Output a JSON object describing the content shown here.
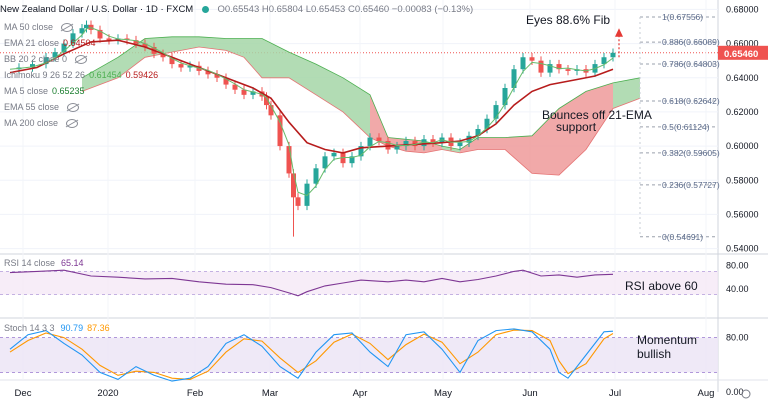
{
  "header": {
    "symbol_title": "New Zealand Dollar / U.S. Dollar · 1D · FXCM",
    "ohlc": "O0.65543  H0.65804  L0.65453  C0.65460  −0.00083 (−0.13%)"
  },
  "legend": [
    {
      "name": "MA 50 close",
      "values": [],
      "hidden": true
    },
    {
      "name": "EMA 21 close",
      "values": [
        "0.64504"
      ],
      "hidden": false,
      "color": "#b71c1c"
    },
    {
      "name": "BB 20 2 close 0",
      "values": [],
      "hidden": true
    },
    {
      "name": "Ichimoku 9 26 52 26",
      "values": [
        "0.61454",
        "0.59426"
      ],
      "hidden": false,
      "colors": [
        "#4caf50",
        "#b71c1c"
      ]
    },
    {
      "name": "MA 5 close",
      "values": [
        "0.65235"
      ],
      "hidden": false,
      "color": "#1b7e2f"
    },
    {
      "name": "EMA 55 close",
      "values": [],
      "hidden": true
    },
    {
      "name": "MA 200 close",
      "values": [],
      "hidden": true
    }
  ],
  "price_axis": {
    "ticks": [
      "0.68000",
      "0.66000",
      "0.64000",
      "0.62000",
      "0.60000",
      "0.58000",
      "0.56000",
      "0.54000"
    ]
  },
  "last_price": {
    "label": "0.65460",
    "color": "#ef5350"
  },
  "time_axis": {
    "ticks": [
      "Dec",
      "2020",
      "Feb",
      "Mar",
      "Apr",
      "May",
      "Jun",
      "Jul",
      "Aug"
    ]
  },
  "fib_levels": [
    {
      "label": "1(0.67556)",
      "price": 0.67556
    },
    {
      "label": "0.886(0.66089)",
      "price": 0.66089
    },
    {
      "label": "0.786(0.64803)",
      "price": 0.64803
    },
    {
      "label": "0.618(0.62642)",
      "price": 0.62642
    },
    {
      "label": "0.5(0.61124)",
      "price": 0.61124
    },
    {
      "label": "0.382(0.59605)",
      "price": 0.59605
    },
    {
      "label": "0.236(0.57727)",
      "price": 0.57727
    },
    {
      "label": "0(0.54691)",
      "price": 0.54691
    }
  ],
  "annotations": {
    "fib_target": "Eyes 88.6% Fib",
    "ema_bounce": "Bounces off 21-EMA support",
    "rsi_note": "RSI above 60",
    "stoch_note": "Momentum bullish"
  },
  "rsi": {
    "legend": "RSI 14 close",
    "value": "65.14",
    "axis": [
      "80.00",
      "40.00"
    ],
    "color": "#7e3794"
  },
  "stoch": {
    "legend": "Stoch 14 3 3",
    "k": "90.79",
    "d": "87.36",
    "axis": [
      "80.00",
      "0.00"
    ],
    "k_color": "#2196f3",
    "d_color": "#ff9800"
  },
  "colors": {
    "up": "#26a69a",
    "down": "#ef5350",
    "cloud_bull": "#a5d6a7",
    "cloud_bear": "#ef9a9a",
    "ema21": "#b71c1c",
    "ma5": "#1b7e2f"
  },
  "chart_data": {
    "type": "line",
    "title": "New Zealand Dollar / U.S. Dollar · 1D · FXCM",
    "xlabel": "",
    "ylabel": "",
    "ylim": [
      0.538,
      0.682
    ],
    "x_ticks": [
      "Dec",
      "2020",
      "Feb",
      "Mar",
      "Apr",
      "May",
      "Jun",
      "Jul",
      "Aug"
    ],
    "price_path": [
      [
        0,
        0.645
      ],
      [
        2,
        0.646
      ],
      [
        5,
        0.648
      ],
      [
        8,
        0.652
      ],
      [
        10,
        0.655
      ],
      [
        12,
        0.66
      ],
      [
        14,
        0.666
      ],
      [
        16,
        0.669
      ],
      [
        17,
        0.671
      ],
      [
        18,
        0.668
      ],
      [
        20,
        0.663
      ],
      [
        22,
        0.662
      ],
      [
        24,
        0.663
      ],
      [
        26,
        0.662
      ],
      [
        28,
        0.66
      ],
      [
        30,
        0.658
      ],
      [
        32,
        0.654
      ],
      [
        34,
        0.652
      ],
      [
        36,
        0.648
      ],
      [
        38,
        0.646
      ],
      [
        40,
        0.647
      ],
      [
        42,
        0.644
      ],
      [
        44,
        0.642
      ],
      [
        46,
        0.64
      ],
      [
        48,
        0.636
      ],
      [
        50,
        0.633
      ],
      [
        52,
        0.63
      ],
      [
        54,
        0.632
      ],
      [
        56,
        0.629
      ],
      [
        57,
        0.624
      ],
      [
        58,
        0.618
      ],
      [
        60,
        0.6
      ],
      [
        62,
        0.584
      ],
      [
        63,
        0.57
      ],
      [
        64,
        0.565
      ],
      [
        66,
        0.578
      ],
      [
        68,
        0.587
      ],
      [
        70,
        0.594
      ],
      [
        72,
        0.596
      ],
      [
        74,
        0.59
      ],
      [
        76,
        0.594
      ],
      [
        78,
        0.6
      ],
      [
        80,
        0.605
      ],
      [
        82,
        0.603
      ],
      [
        84,
        0.598
      ],
      [
        86,
        0.6
      ],
      [
        88,
        0.603
      ],
      [
        90,
        0.6
      ],
      [
        92,
        0.604
      ],
      [
        94,
        0.602
      ],
      [
        96,
        0.605
      ],
      [
        98,
        0.6
      ],
      [
        100,
        0.602
      ],
      [
        102,
        0.606
      ],
      [
        104,
        0.61
      ],
      [
        106,
        0.616
      ],
      [
        108,
        0.624
      ],
      [
        110,
        0.634
      ],
      [
        112,
        0.645
      ],
      [
        114,
        0.652
      ],
      [
        116,
        0.65
      ],
      [
        118,
        0.643
      ],
      [
        120,
        0.648
      ],
      [
        122,
        0.645
      ],
      [
        124,
        0.644
      ],
      [
        126,
        0.645
      ],
      [
        128,
        0.643
      ],
      [
        130,
        0.648
      ],
      [
        132,
        0.652
      ],
      [
        134,
        0.6546
      ]
    ],
    "ema21_path": [
      [
        0,
        0.643
      ],
      [
        6,
        0.646
      ],
      [
        12,
        0.654
      ],
      [
        18,
        0.661
      ],
      [
        24,
        0.662
      ],
      [
        30,
        0.658
      ],
      [
        36,
        0.652
      ],
      [
        42,
        0.646
      ],
      [
        48,
        0.64
      ],
      [
        54,
        0.634
      ],
      [
        58,
        0.628
      ],
      [
        62,
        0.614
      ],
      [
        66,
        0.602
      ],
      [
        70,
        0.598
      ],
      [
        74,
        0.596
      ],
      [
        78,
        0.599
      ],
      [
        84,
        0.6
      ],
      [
        90,
        0.601
      ],
      [
        96,
        0.602
      ],
      [
        100,
        0.603
      ],
      [
        104,
        0.606
      ],
      [
        108,
        0.613
      ],
      [
        112,
        0.624
      ],
      [
        116,
        0.632
      ],
      [
        120,
        0.636
      ],
      [
        126,
        0.639
      ],
      [
        130,
        0.641
      ],
      [
        134,
        0.645
      ]
    ],
    "cloud_top": [
      [
        16,
        0.64
      ],
      [
        24,
        0.652
      ],
      [
        30,
        0.663
      ],
      [
        36,
        0.664
      ],
      [
        42,
        0.664
      ],
      [
        48,
        0.663
      ],
      [
        52,
        0.663
      ],
      [
        56,
        0.663
      ],
      [
        62,
        0.655
      ],
      [
        68,
        0.648
      ],
      [
        74,
        0.64
      ],
      [
        80,
        0.63
      ],
      [
        84,
        0.605
      ],
      [
        88,
        0.604
      ],
      [
        92,
        0.603
      ],
      [
        96,
        0.6
      ],
      [
        100,
        0.598
      ],
      [
        104,
        0.605
      ],
      [
        110,
        0.605
      ],
      [
        116,
        0.606
      ],
      [
        122,
        0.622
      ],
      [
        128,
        0.632
      ],
      [
        134,
        0.637
      ],
      [
        140,
        0.64
      ]
    ],
    "cloud_bottom": [
      [
        16,
        0.632
      ],
      [
        24,
        0.64
      ],
      [
        30,
        0.652
      ],
      [
        36,
        0.655
      ],
      [
        42,
        0.658
      ],
      [
        48,
        0.656
      ],
      [
        52,
        0.652
      ],
      [
        56,
        0.64
      ],
      [
        62,
        0.64
      ],
      [
        68,
        0.63
      ],
      [
        74,
        0.62
      ],
      [
        80,
        0.605
      ],
      [
        84,
        0.6
      ],
      [
        88,
        0.597
      ],
      [
        92,
        0.596
      ],
      [
        96,
        0.598
      ],
      [
        100,
        0.596
      ],
      [
        104,
        0.598
      ],
      [
        110,
        0.598
      ],
      [
        116,
        0.584
      ],
      [
        122,
        0.583
      ],
      [
        128,
        0.598
      ],
      [
        134,
        0.622
      ],
      [
        140,
        0.628
      ]
    ],
    "rsi_path": [
      [
        0,
        68
      ],
      [
        6,
        70
      ],
      [
        12,
        72
      ],
      [
        18,
        62
      ],
      [
        24,
        60
      ],
      [
        30,
        57
      ],
      [
        36,
        58
      ],
      [
        42,
        52
      ],
      [
        48,
        48
      ],
      [
        54,
        47
      ],
      [
        58,
        42
      ],
      [
        62,
        33
      ],
      [
        64,
        28
      ],
      [
        66,
        35
      ],
      [
        70,
        45
      ],
      [
        74,
        50
      ],
      [
        78,
        55
      ],
      [
        84,
        52
      ],
      [
        88,
        55
      ],
      [
        92,
        52
      ],
      [
        96,
        58
      ],
      [
        100,
        52
      ],
      [
        104,
        56
      ],
      [
        108,
        62
      ],
      [
        112,
        70
      ],
      [
        114,
        72
      ],
      [
        118,
        62
      ],
      [
        122,
        64
      ],
      [
        126,
        60
      ],
      [
        130,
        64
      ],
      [
        134,
        65
      ]
    ],
    "stoch_k_path": [
      [
        0,
        60
      ],
      [
        4,
        85
      ],
      [
        8,
        92
      ],
      [
        12,
        70
      ],
      [
        16,
        50
      ],
      [
        20,
        20
      ],
      [
        24,
        8
      ],
      [
        28,
        30
      ],
      [
        32,
        15
      ],
      [
        36,
        5
      ],
      [
        40,
        10
      ],
      [
        44,
        30
      ],
      [
        48,
        70
      ],
      [
        52,
        85
      ],
      [
        56,
        65
      ],
      [
        60,
        30
      ],
      [
        64,
        10
      ],
      [
        68,
        55
      ],
      [
        72,
        85
      ],
      [
        76,
        88
      ],
      [
        80,
        55
      ],
      [
        84,
        30
      ],
      [
        88,
        85
      ],
      [
        92,
        90
      ],
      [
        96,
        60
      ],
      [
        100,
        20
      ],
      [
        104,
        75
      ],
      [
        108,
        92
      ],
      [
        112,
        95
      ],
      [
        116,
        90
      ],
      [
        120,
        60
      ],
      [
        122,
        20
      ],
      [
        124,
        10
      ],
      [
        128,
        50
      ],
      [
        132,
        90
      ],
      [
        134,
        91
      ]
    ],
    "stoch_d_path": [
      [
        0,
        55
      ],
      [
        4,
        75
      ],
      [
        8,
        88
      ],
      [
        12,
        80
      ],
      [
        16,
        60
      ],
      [
        20,
        32
      ],
      [
        24,
        15
      ],
      [
        28,
        22
      ],
      [
        32,
        20
      ],
      [
        36,
        10
      ],
      [
        40,
        8
      ],
      [
        44,
        22
      ],
      [
        48,
        55
      ],
      [
        52,
        78
      ],
      [
        56,
        74
      ],
      [
        60,
        45
      ],
      [
        64,
        20
      ],
      [
        68,
        40
      ],
      [
        72,
        72
      ],
      [
        76,
        86
      ],
      [
        80,
        70
      ],
      [
        84,
        42
      ],
      [
        88,
        68
      ],
      [
        92,
        86
      ],
      [
        96,
        72
      ],
      [
        100,
        35
      ],
      [
        104,
        55
      ],
      [
        108,
        85
      ],
      [
        112,
        93
      ],
      [
        116,
        92
      ],
      [
        120,
        75
      ],
      [
        122,
        40
      ],
      [
        124,
        18
      ],
      [
        128,
        35
      ],
      [
        132,
        78
      ],
      [
        134,
        87
      ]
    ]
  }
}
